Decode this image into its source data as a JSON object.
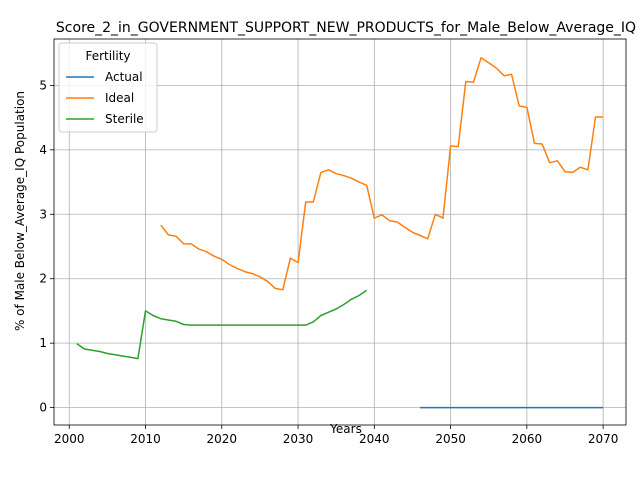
{
  "chart_data": {
    "type": "line",
    "title": "Score_2_in_GOVERNMENT_SUPPORT_NEW_PRODUCTS_for_Male_Below_Average_IQ",
    "xlabel": "Years",
    "ylabel": "% of Male Below_Average_IQ Population",
    "xlim": [
      1998,
      2073
    ],
    "ylim": [
      -0.27,
      5.72
    ],
    "xticks": [
      2000,
      2010,
      2020,
      2030,
      2040,
      2050,
      2060,
      2070
    ],
    "yticks": [
      0,
      1,
      2,
      3,
      4,
      5
    ],
    "grid": true,
    "legend": {
      "title": "Fertility",
      "placement": "top-left"
    },
    "series": [
      {
        "name": "Actual",
        "color": "#1f77b4",
        "x": [
          2046,
          2047,
          2048,
          2049,
          2050,
          2051,
          2052,
          2053,
          2054,
          2055,
          2056,
          2057,
          2058,
          2059,
          2060,
          2061,
          2062,
          2063,
          2064,
          2065,
          2066,
          2067,
          2068,
          2069,
          2070
        ],
        "y": [
          0,
          0,
          0,
          0,
          0,
          0,
          0,
          0,
          0,
          0,
          0,
          0,
          0,
          0,
          0,
          0,
          0,
          0,
          0,
          0,
          0,
          0,
          0,
          0,
          0
        ]
      },
      {
        "name": "Ideal",
        "color": "#ff7f0e",
        "x": [
          2012,
          2013,
          2014,
          2015,
          2016,
          2017,
          2018,
          2019,
          2020,
          2021,
          2022,
          2023,
          2024,
          2025,
          2026,
          2027,
          2028,
          2029,
          2030,
          2031,
          2032,
          2033,
          2034,
          2035,
          2036,
          2037,
          2038,
          2039,
          2040,
          2041,
          2042,
          2043,
          2044,
          2045,
          2046,
          2047,
          2048,
          2049,
          2050,
          2051,
          2052,
          2053,
          2054,
          2055,
          2056,
          2057,
          2058,
          2059,
          2060,
          2061,
          2062,
          2063,
          2064,
          2065,
          2066,
          2067,
          2068,
          2069,
          2070
        ],
        "y": [
          2.83,
          2.68,
          2.66,
          2.54,
          2.54,
          2.46,
          2.42,
          2.35,
          2.3,
          2.22,
          2.16,
          2.11,
          2.08,
          2.03,
          1.96,
          1.85,
          1.83,
          2.32,
          2.25,
          3.19,
          3.19,
          3.65,
          3.69,
          3.63,
          3.6,
          3.56,
          3.5,
          3.45,
          2.94,
          2.99,
          2.9,
          2.88,
          2.8,
          2.72,
          2.67,
          2.62,
          3.0,
          2.94,
          4.06,
          4.05,
          5.06,
          5.05,
          5.43,
          5.35,
          5.27,
          5.15,
          5.17,
          4.68,
          4.66,
          4.1,
          4.09,
          3.8,
          3.83,
          3.66,
          3.65,
          3.73,
          3.69,
          4.51,
          4.51
        ]
      },
      {
        "name": "Sterile",
        "color": "#2ca02c",
        "x": [
          2001,
          2002,
          2003,
          2004,
          2005,
          2006,
          2007,
          2008,
          2009,
          2010,
          2011,
          2012,
          2013,
          2014,
          2015,
          2016,
          2017,
          2018,
          2019,
          2020,
          2021,
          2022,
          2023,
          2024,
          2025,
          2026,
          2027,
          2028,
          2029,
          2030,
          2031,
          2032,
          2033,
          2034,
          2035,
          2036,
          2037,
          2038,
          2039
        ],
        "y": [
          0.99,
          0.91,
          0.89,
          0.87,
          0.84,
          0.82,
          0.8,
          0.78,
          0.76,
          1.5,
          1.43,
          1.38,
          1.36,
          1.34,
          1.29,
          1.28,
          1.28,
          1.28,
          1.28,
          1.28,
          1.28,
          1.28,
          1.28,
          1.28,
          1.28,
          1.28,
          1.28,
          1.28,
          1.28,
          1.28,
          1.28,
          1.33,
          1.43,
          1.48,
          1.53,
          1.6,
          1.68,
          1.74,
          1.82
        ]
      }
    ]
  }
}
